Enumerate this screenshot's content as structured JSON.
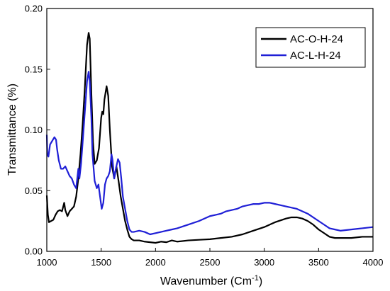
{
  "chart_data": {
    "type": "line",
    "title": "",
    "xlabel": "Wavenumber (Cm",
    "xlabel_sup": "-1",
    "xlabel_tail": ")",
    "ylabel": "Transmittance (%)",
    "xlim": [
      1000,
      4000
    ],
    "ylim": [
      0.0,
      0.2
    ],
    "xticks": [
      1000,
      1500,
      2000,
      2500,
      3000,
      3500,
      4000
    ],
    "yticks": [
      0.0,
      0.05,
      0.1,
      0.15,
      0.2
    ],
    "ytick_labels": [
      "0.00",
      "0.05",
      "0.10",
      "0.15",
      "0.20"
    ],
    "xtick_labels": [
      "1000",
      "1500",
      "2000",
      "2500",
      "3000",
      "3500",
      "4000"
    ],
    "legend_position": "top-right",
    "grid": false,
    "series": [
      {
        "name": "AC-O-H-24",
        "color": "#000000",
        "points": [
          [
            1000,
            0.046
          ],
          [
            1010,
            0.03
          ],
          [
            1020,
            0.024
          ],
          [
            1040,
            0.025
          ],
          [
            1060,
            0.026
          ],
          [
            1080,
            0.03
          ],
          [
            1100,
            0.033
          ],
          [
            1120,
            0.034
          ],
          [
            1140,
            0.033
          ],
          [
            1160,
            0.04
          ],
          [
            1170,
            0.034
          ],
          [
            1190,
            0.029
          ],
          [
            1210,
            0.033
          ],
          [
            1230,
            0.035
          ],
          [
            1250,
            0.037
          ],
          [
            1270,
            0.045
          ],
          [
            1290,
            0.06
          ],
          [
            1310,
            0.08
          ],
          [
            1330,
            0.105
          ],
          [
            1350,
            0.135
          ],
          [
            1370,
            0.17
          ],
          [
            1385,
            0.18
          ],
          [
            1395,
            0.175
          ],
          [
            1410,
            0.13
          ],
          [
            1425,
            0.09
          ],
          [
            1440,
            0.072
          ],
          [
            1460,
            0.075
          ],
          [
            1480,
            0.085
          ],
          [
            1500,
            0.11
          ],
          [
            1510,
            0.115
          ],
          [
            1520,
            0.113
          ],
          [
            1530,
            0.125
          ],
          [
            1550,
            0.136
          ],
          [
            1565,
            0.128
          ],
          [
            1580,
            0.1
          ],
          [
            1600,
            0.07
          ],
          [
            1620,
            0.06
          ],
          [
            1640,
            0.07
          ],
          [
            1660,
            0.058
          ],
          [
            1680,
            0.045
          ],
          [
            1700,
            0.035
          ],
          [
            1720,
            0.025
          ],
          [
            1740,
            0.018
          ],
          [
            1760,
            0.012
          ],
          [
            1780,
            0.01
          ],
          [
            1800,
            0.009
          ],
          [
            1850,
            0.009
          ],
          [
            1900,
            0.008
          ],
          [
            1950,
            0.0075
          ],
          [
            2000,
            0.007
          ],
          [
            2050,
            0.008
          ],
          [
            2100,
            0.0075
          ],
          [
            2150,
            0.009
          ],
          [
            2200,
            0.008
          ],
          [
            2300,
            0.009
          ],
          [
            2400,
            0.0095
          ],
          [
            2500,
            0.01
          ],
          [
            2600,
            0.011
          ],
          [
            2700,
            0.012
          ],
          [
            2800,
            0.014
          ],
          [
            2900,
            0.017
          ],
          [
            3000,
            0.02
          ],
          [
            3100,
            0.024
          ],
          [
            3200,
            0.027
          ],
          [
            3250,
            0.028
          ],
          [
            3300,
            0.028
          ],
          [
            3350,
            0.027
          ],
          [
            3400,
            0.025
          ],
          [
            3450,
            0.022
          ],
          [
            3500,
            0.018
          ],
          [
            3550,
            0.015
          ],
          [
            3600,
            0.012
          ],
          [
            3650,
            0.011
          ],
          [
            3700,
            0.011
          ],
          [
            3800,
            0.011
          ],
          [
            3900,
            0.012
          ],
          [
            4000,
            0.012
          ]
        ]
      },
      {
        "name": "AC-L-H-24",
        "color": "#1f1fd6",
        "points": [
          [
            1000,
            0.096
          ],
          [
            1005,
            0.08
          ],
          [
            1015,
            0.078
          ],
          [
            1030,
            0.088
          ],
          [
            1050,
            0.091
          ],
          [
            1070,
            0.094
          ],
          [
            1085,
            0.092
          ],
          [
            1095,
            0.084
          ],
          [
            1110,
            0.075
          ],
          [
            1130,
            0.068
          ],
          [
            1150,
            0.068
          ],
          [
            1170,
            0.07
          ],
          [
            1190,
            0.066
          ],
          [
            1210,
            0.062
          ],
          [
            1230,
            0.06
          ],
          [
            1250,
            0.055
          ],
          [
            1270,
            0.052
          ],
          [
            1290,
            0.068
          ],
          [
            1300,
            0.06
          ],
          [
            1315,
            0.072
          ],
          [
            1330,
            0.09
          ],
          [
            1350,
            0.115
          ],
          [
            1370,
            0.14
          ],
          [
            1385,
            0.148
          ],
          [
            1395,
            0.14
          ],
          [
            1410,
            0.11
          ],
          [
            1420,
            0.08
          ],
          [
            1440,
            0.058
          ],
          [
            1460,
            0.052
          ],
          [
            1475,
            0.055
          ],
          [
            1490,
            0.045
          ],
          [
            1505,
            0.035
          ],
          [
            1520,
            0.04
          ],
          [
            1535,
            0.055
          ],
          [
            1550,
            0.06
          ],
          [
            1565,
            0.062
          ],
          [
            1580,
            0.066
          ],
          [
            1595,
            0.08
          ],
          [
            1605,
            0.075
          ],
          [
            1620,
            0.06
          ],
          [
            1640,
            0.07
          ],
          [
            1655,
            0.076
          ],
          [
            1670,
            0.073
          ],
          [
            1685,
            0.06
          ],
          [
            1700,
            0.045
          ],
          [
            1720,
            0.035
          ],
          [
            1740,
            0.025
          ],
          [
            1760,
            0.018
          ],
          [
            1780,
            0.016
          ],
          [
            1800,
            0.016
          ],
          [
            1850,
            0.017
          ],
          [
            1900,
            0.016
          ],
          [
            1950,
            0.014
          ],
          [
            2000,
            0.015
          ],
          [
            2050,
            0.016
          ],
          [
            2100,
            0.017
          ],
          [
            2150,
            0.018
          ],
          [
            2200,
            0.019
          ],
          [
            2300,
            0.022
          ],
          [
            2400,
            0.025
          ],
          [
            2500,
            0.029
          ],
          [
            2550,
            0.03
          ],
          [
            2600,
            0.031
          ],
          [
            2650,
            0.033
          ],
          [
            2700,
            0.034
          ],
          [
            2750,
            0.035
          ],
          [
            2800,
            0.037
          ],
          [
            2850,
            0.038
          ],
          [
            2900,
            0.039
          ],
          [
            2950,
            0.039
          ],
          [
            3000,
            0.04
          ],
          [
            3050,
            0.04
          ],
          [
            3100,
            0.039
          ],
          [
            3150,
            0.038
          ],
          [
            3200,
            0.037
          ],
          [
            3300,
            0.035
          ],
          [
            3400,
            0.031
          ],
          [
            3500,
            0.025
          ],
          [
            3550,
            0.022
          ],
          [
            3600,
            0.019
          ],
          [
            3650,
            0.018
          ],
          [
            3700,
            0.017
          ],
          [
            3800,
            0.018
          ],
          [
            3900,
            0.019
          ],
          [
            4000,
            0.02
          ]
        ]
      }
    ]
  }
}
